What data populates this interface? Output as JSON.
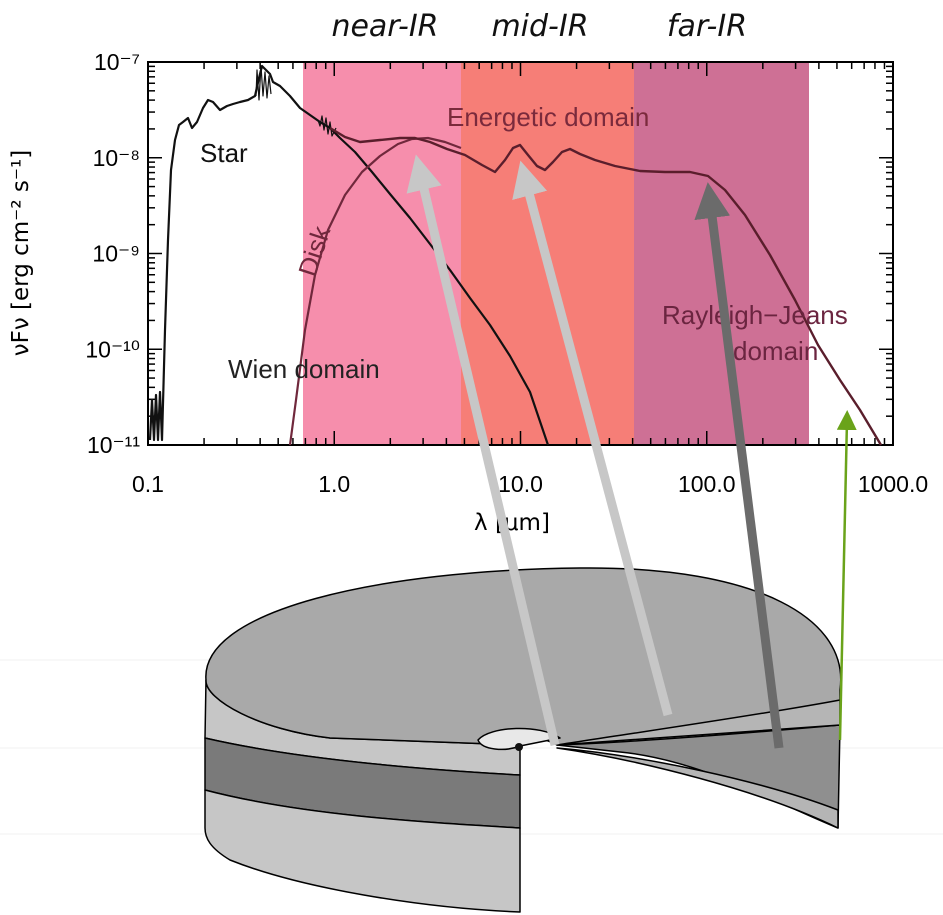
{
  "bands": [
    {
      "label": "near-IR",
      "color": "#f47a9e"
    },
    {
      "label": "mid-IR",
      "color": "#f4675f"
    },
    {
      "label": "far-IR",
      "color": "#c65783"
    }
  ],
  "annotations": {
    "star": "Star",
    "disk": "Disk",
    "energetic": "Energetic domain",
    "wien": "Wien domain",
    "rj_line1": "Rayleigh−Jeans",
    "rj_line2": "domain"
  },
  "chart_data": {
    "type": "line",
    "xlabel": "λ [μm]",
    "ylabel": "νFν [erg cm⁻² s⁻¹]",
    "xscale": "log",
    "yscale": "log",
    "xlim": [
      0.1,
      1000
    ],
    "ylim": [
      1e-11,
      1e-07
    ],
    "xticks": [
      "0.1",
      "1.0",
      "10.0",
      "100.0",
      "1000.0"
    ],
    "yticks": [
      "10⁻⁷",
      "10⁻⁸",
      "10⁻⁹",
      "10⁻¹⁰",
      "10⁻¹¹"
    ],
    "shaded_regions_um": [
      [
        0.7,
        5
      ],
      [
        5,
        40
      ],
      [
        40,
        350
      ]
    ],
    "series": [
      {
        "name": "Star",
        "x": [
          0.12,
          0.13,
          0.15,
          0.2,
          0.25,
          0.3,
          0.4,
          0.6,
          1.0,
          2.0,
          4.0,
          8.0,
          15.0
        ],
        "y": [
          1e-11,
          8e-10,
          1.2e-08,
          2.5e-08,
          3e-08,
          3e-08,
          9e-08,
          3.5e-08,
          1.2e-08,
          2.5e-09,
          4e-10,
          6e-11,
          1e-11
        ]
      },
      {
        "name": "Disk",
        "x": [
          0.68,
          0.8,
          1.0,
          1.5,
          2.5,
          4.0,
          5.0
        ],
        "y": [
          1e-11,
          2e-10,
          1.3e-09,
          6e-09,
          1.5e-08,
          1.1e-08,
          8e-09
        ]
      },
      {
        "x": [
          1.0,
          1.5,
          2.5,
          5.0,
          7.5,
          10.0,
          13.0,
          18.0,
          25.0,
          50.0,
          100.0,
          200.0,
          400.0,
          700.0,
          900.0
        ],
        "y": [
          1.2e-08,
          1.3e-08,
          1.5e-08,
          1e-08,
          7e-09,
          1.35e-08,
          8e-09,
          1.2e-08,
          9e-09,
          7e-09,
          7e-09,
          2e-09,
          2e-10,
          2.5e-11,
          1e-11
        ]
      }
    ]
  }
}
